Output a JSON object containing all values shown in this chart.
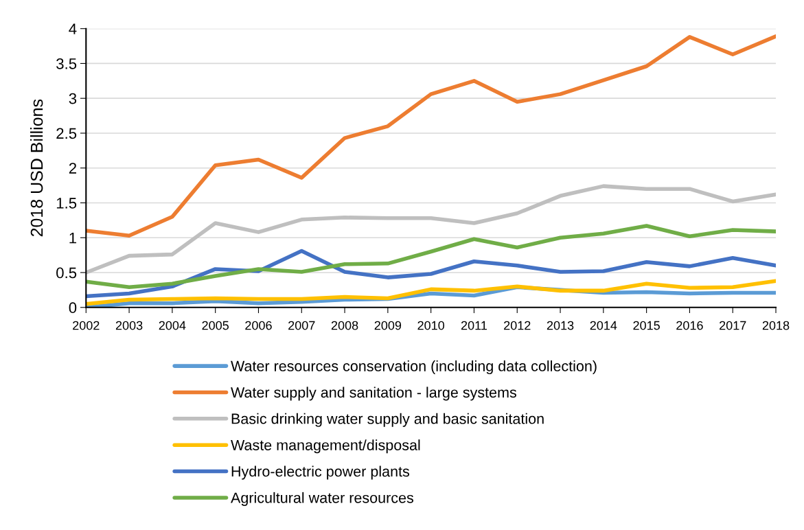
{
  "chart_data": {
    "type": "line",
    "ylabel": "2018 USD Billions",
    "x": [
      2002,
      2003,
      2004,
      2005,
      2006,
      2007,
      2008,
      2009,
      2010,
      2011,
      2012,
      2013,
      2014,
      2015,
      2016,
      2017,
      2018
    ],
    "xlim": [
      2002,
      2018
    ],
    "xticks": [
      2002,
      2003,
      2004,
      2005,
      2006,
      2007,
      2008,
      2009,
      2010,
      2011,
      2012,
      2013,
      2014,
      2015,
      2016,
      2017,
      2018
    ],
    "ylim": [
      0,
      4
    ],
    "yticks": [
      0,
      0.5,
      1,
      1.5,
      2,
      2.5,
      3,
      3.5,
      4
    ],
    "grid": "y",
    "legend": "bottom",
    "marker": "none",
    "line_style": "solid",
    "series": [
      {
        "name": "Water resources conservation (including data collection)",
        "color": "#5b9bd5",
        "values": [
          0.0,
          0.06,
          0.06,
          0.09,
          0.06,
          0.08,
          0.11,
          0.12,
          0.2,
          0.17,
          0.29,
          0.25,
          0.21,
          0.22,
          0.2,
          0.21,
          0.21
        ]
      },
      {
        "name": "Water supply and sanitation - large systems",
        "color": "#ed7d31",
        "values": [
          1.1,
          1.03,
          1.3,
          2.04,
          2.12,
          1.86,
          2.43,
          2.6,
          3.06,
          3.25,
          2.95,
          3.06,
          3.26,
          3.46,
          3.88,
          3.63,
          3.89
        ]
      },
      {
        "name": "Basic drinking water supply and basic sanitation",
        "color": "#bfbfbf",
        "values": [
          0.5,
          0.74,
          0.76,
          1.21,
          1.08,
          1.26,
          1.29,
          1.28,
          1.28,
          1.21,
          1.35,
          1.6,
          1.74,
          1.7,
          1.7,
          1.52,
          1.62
        ]
      },
      {
        "name": "Waste management/disposal",
        "color": "#ffc000",
        "values": [
          0.05,
          0.11,
          0.12,
          0.13,
          0.12,
          0.12,
          0.15,
          0.13,
          0.26,
          0.24,
          0.3,
          0.24,
          0.24,
          0.34,
          0.28,
          0.29,
          0.38
        ]
      },
      {
        "name": "Hydro-electric power plants",
        "color": "#4472c4",
        "values": [
          0.16,
          0.2,
          0.3,
          0.55,
          0.52,
          0.81,
          0.51,
          0.43,
          0.48,
          0.66,
          0.6,
          0.51,
          0.52,
          0.65,
          0.59,
          0.71,
          0.6
        ]
      },
      {
        "name": "Agricultural water resources",
        "color": "#70ad47",
        "values": [
          0.37,
          0.29,
          0.34,
          0.45,
          0.55,
          0.51,
          0.62,
          0.63,
          0.8,
          0.98,
          0.86,
          1.0,
          1.06,
          1.17,
          1.02,
          1.11,
          1.09
        ]
      }
    ]
  }
}
